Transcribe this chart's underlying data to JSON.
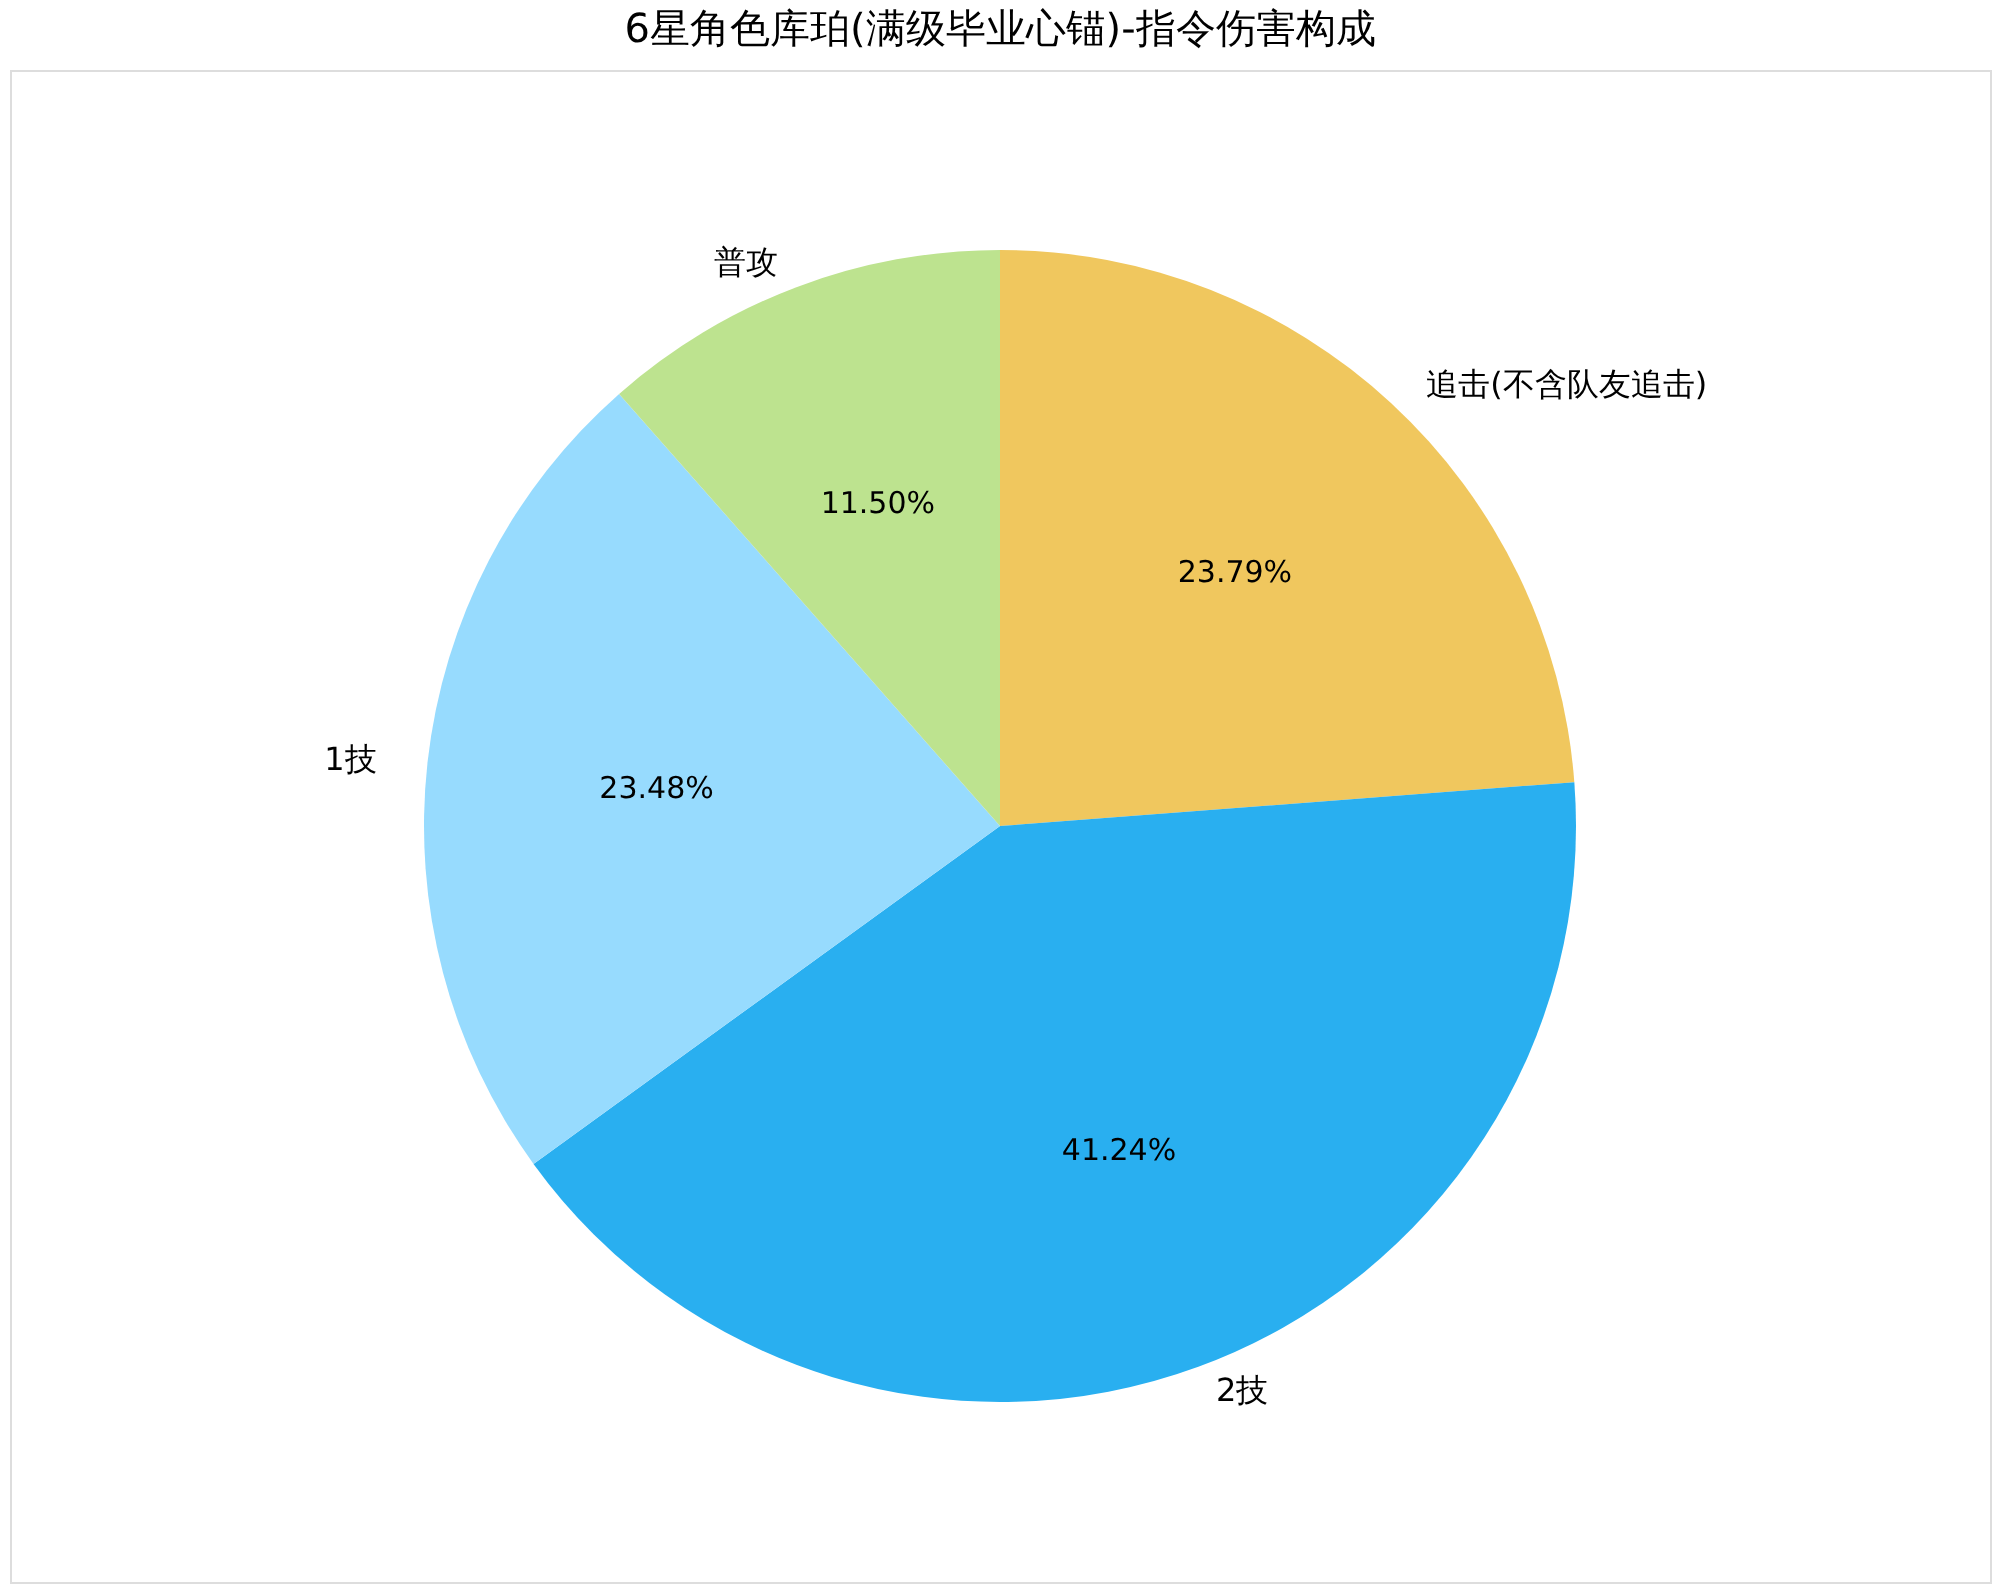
{
  "chart_data": {
    "type": "pie",
    "title": "6星角色库珀(满级毕业心锚)-指令伤害构成",
    "categories": [
      "追击(不含队友追击)",
      "2技",
      "1技",
      "普攻"
    ],
    "values": [
      23.79,
      41.24,
      23.48,
      11.5
    ],
    "colors": [
      "#f0c75e",
      "#29aff0",
      "#97dbfe",
      "#bde38f"
    ],
    "value_labels": [
      "23.79%",
      "41.24%",
      "23.48%",
      "11.50%"
    ],
    "legend": false
  }
}
